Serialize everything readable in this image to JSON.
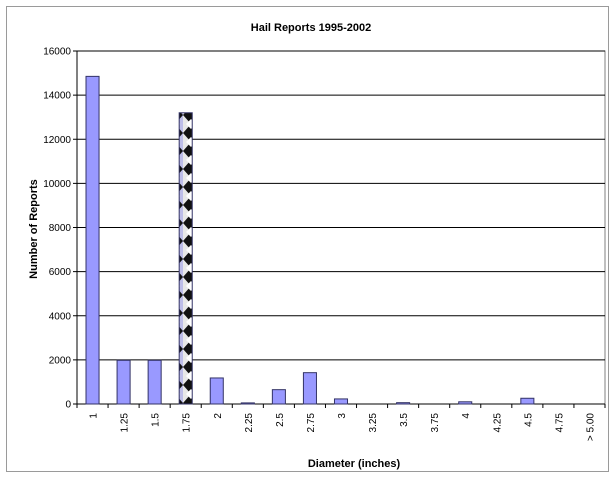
{
  "chart_data": {
    "type": "bar",
    "title": "Hail Reports 1995-2002",
    "xlabel": "Diameter (inches)",
    "ylabel": "Number of Reports",
    "ylim": [
      0,
      16000
    ],
    "yticks": [
      0,
      2000,
      4000,
      6000,
      8000,
      10000,
      12000,
      14000,
      16000
    ],
    "grid": true,
    "legend": "none",
    "categories": [
      "1",
      "1.25",
      "1.5",
      "1.75",
      "2",
      "2.25",
      "2.5",
      "2.75",
      "3",
      "3.25",
      "3.5",
      "3.75",
      "4",
      "4.25",
      "4.5",
      "4.75",
      "> 5.00"
    ],
    "values": [
      14850,
      1980,
      1980,
      13200,
      1180,
      50,
      650,
      1420,
      230,
      0,
      60,
      0,
      100,
      0,
      260,
      0,
      0
    ],
    "patterned_category": "1.75",
    "colors": {
      "bar_fill": "#9999ff",
      "bar_stroke": "#333366",
      "gridline": "#000000",
      "axis": "#000000",
      "plot_border": "#808080"
    }
  }
}
